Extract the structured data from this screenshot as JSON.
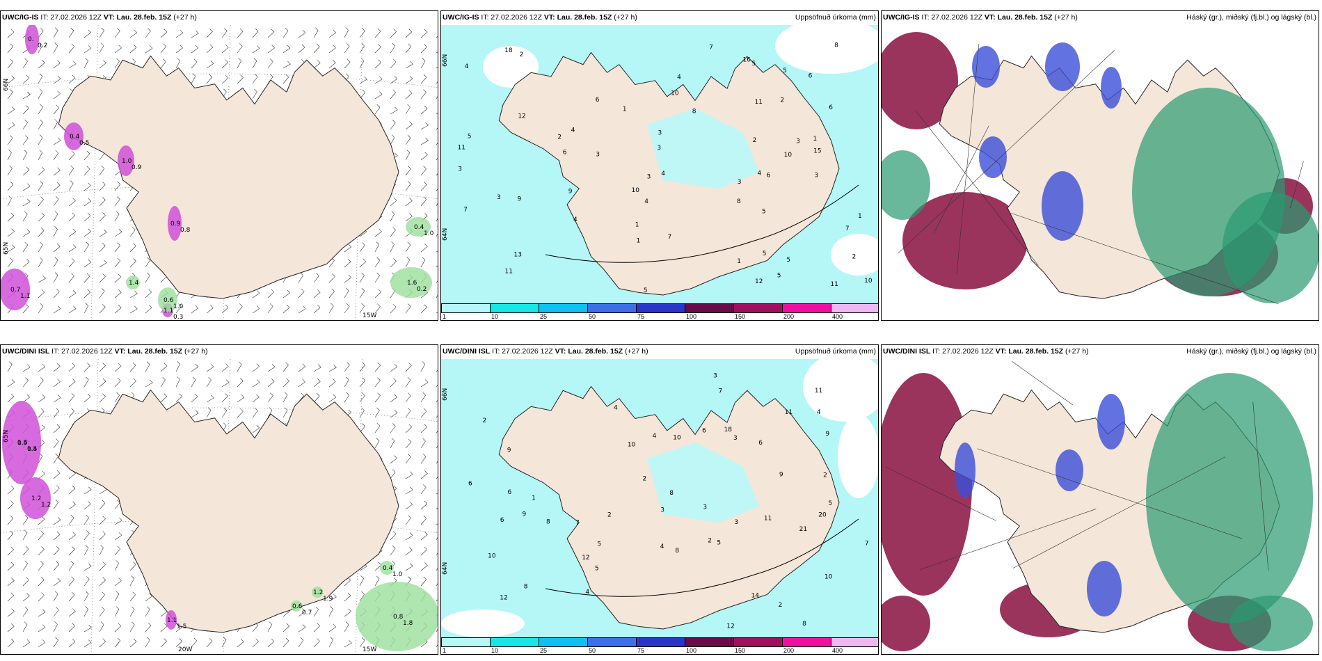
{
  "figure": {
    "row_top": {
      "left": {
        "model": "UWC/IG-IS",
        "it": "IT: 27.02.2026 12Z",
        "vt": "VT: Lau. 28.feb. 15Z",
        "lead": "(+27 h)",
        "right_title": ""
      },
      "middle": {
        "model": "UWC/IG-IS",
        "it": "IT: 27.02.2026 12Z",
        "vt": "VT: Lau. 28.feb. 15Z",
        "lead": "(+27 h)",
        "right_title": "Uppsöfnuð úrkoma (mm)"
      },
      "right": {
        "model": "UWC/IG-IS",
        "it": "IT: 27.02.2026 12Z",
        "vt": "VT: Lau. 28.feb. 15Z",
        "lead": "(+27 h)",
        "right_title": "Háský (gr.), miðský (fj.bl.) og lágský (bl.)"
      }
    },
    "row_bottom": {
      "left": {
        "model": "UWC/DINI ISL",
        "it": "IT: 27.02.2026 12Z",
        "vt": "VT: Lau. 28.feb. 15Z",
        "lead": "(+27 h)",
        "right_title": ""
      },
      "middle": {
        "model": "UWC/DINI ISL",
        "it": "IT: 27.02.2026 12Z",
        "vt": "VT: Lau. 28.feb. 15Z",
        "lead": "(+27 h)",
        "right_title": "Uppsöfnuð úrkoma (mm)"
      },
      "right": {
        "model": "UWC/DINI ISL",
        "it": "IT: 27.02.2026 12Z",
        "vt": "VT: Lau. 28.feb. 15Z",
        "lead": "(+27 h)",
        "right_title": "Háský (gr.), miðský (fj.bl.) og lágský (bl.)"
      }
    }
  },
  "axis_labels": {
    "top_left": [
      "66N",
      "65N",
      "15W"
    ],
    "top_mid": [
      "66N",
      "64N"
    ],
    "bottom_left": [
      "65N",
      "20W",
      "15W"
    ],
    "bottom_mid": [
      "66N",
      "64N"
    ]
  },
  "colorbar": {
    "ticks": [
      "1",
      "10",
      "25",
      "50",
      "75",
      "100",
      "150",
      "200",
      "400"
    ],
    "colors": [
      "#b7f7f7",
      "#19e6e6",
      "#10c0f0",
      "#3f6fe8",
      "#2a36c8",
      "#6a0a4a",
      "#a0105e",
      "#f010a0",
      "#f0b8f0"
    ]
  },
  "colors": {
    "land": "#f4e6d8",
    "sea": "#ffffff",
    "precip_light": "#b5f6f6",
    "wet_region": "#bff7f7",
    "cloud_high": "#2a9a70",
    "cloud_mid": "#3b4fd8",
    "cloud_low": "#8a1040",
    "magenta_precip": "#d050d8",
    "green_precip": "#9be09b"
  },
  "annotations": {
    "top_left": [
      "0.",
      "0.2",
      "0.4",
      "0.5",
      "1.0",
      "0.9",
      "0.9",
      "0.8",
      "0.7",
      "1.1",
      "1.1",
      "0.3",
      "0.4",
      "1.0",
      "1.6",
      "0.2",
      "0.6",
      "1.0",
      "1.4"
    ],
    "bottom_left": [
      "0.4",
      "1.5",
      "1.2",
      "1.2",
      "1.1",
      "1.5",
      "0.8",
      "1.8",
      "0.4",
      "1.0",
      "1.2",
      "1.9",
      "0.6",
      "0.7",
      "1.5",
      "0.4"
    ],
    "top_mid": [
      "8",
      "1",
      "3",
      "7",
      "1",
      "2",
      "1",
      "3",
      "2",
      "5",
      "4",
      "3",
      "7",
      "5",
      "4",
      "11",
      "6",
      "3",
      "5",
      "1",
      "4",
      "3",
      "2",
      "16",
      "15",
      "13",
      "12",
      "11",
      "10",
      "9",
      "6",
      "7",
      "5",
      "5",
      "3",
      "11",
      "8",
      "4",
      "6",
      "12",
      "10",
      "9",
      "4",
      "5",
      "11",
      "6",
      "8",
      "4",
      "3",
      "2",
      "1",
      "2",
      "3",
      "5",
      "4",
      "6",
      "5",
      "18",
      "10",
      "7",
      "3",
      "1",
      "10"
    ],
    "bottom_mid": [
      "8",
      "9",
      "2",
      "2",
      "10",
      "9",
      "8",
      "7",
      "6",
      "4",
      "3",
      "2",
      "5",
      "4",
      "3",
      "10",
      "11",
      "8",
      "6",
      "12",
      "11",
      "10",
      "9",
      "7",
      "5",
      "6",
      "8",
      "3",
      "2",
      "4",
      "5",
      "6",
      "12",
      "18",
      "10",
      "21",
      "20",
      "14",
      "11",
      "12",
      "5",
      "8",
      "4",
      "3",
      "2",
      "1",
      "9",
      "7",
      "6",
      "4",
      "3",
      "2"
    ]
  }
}
